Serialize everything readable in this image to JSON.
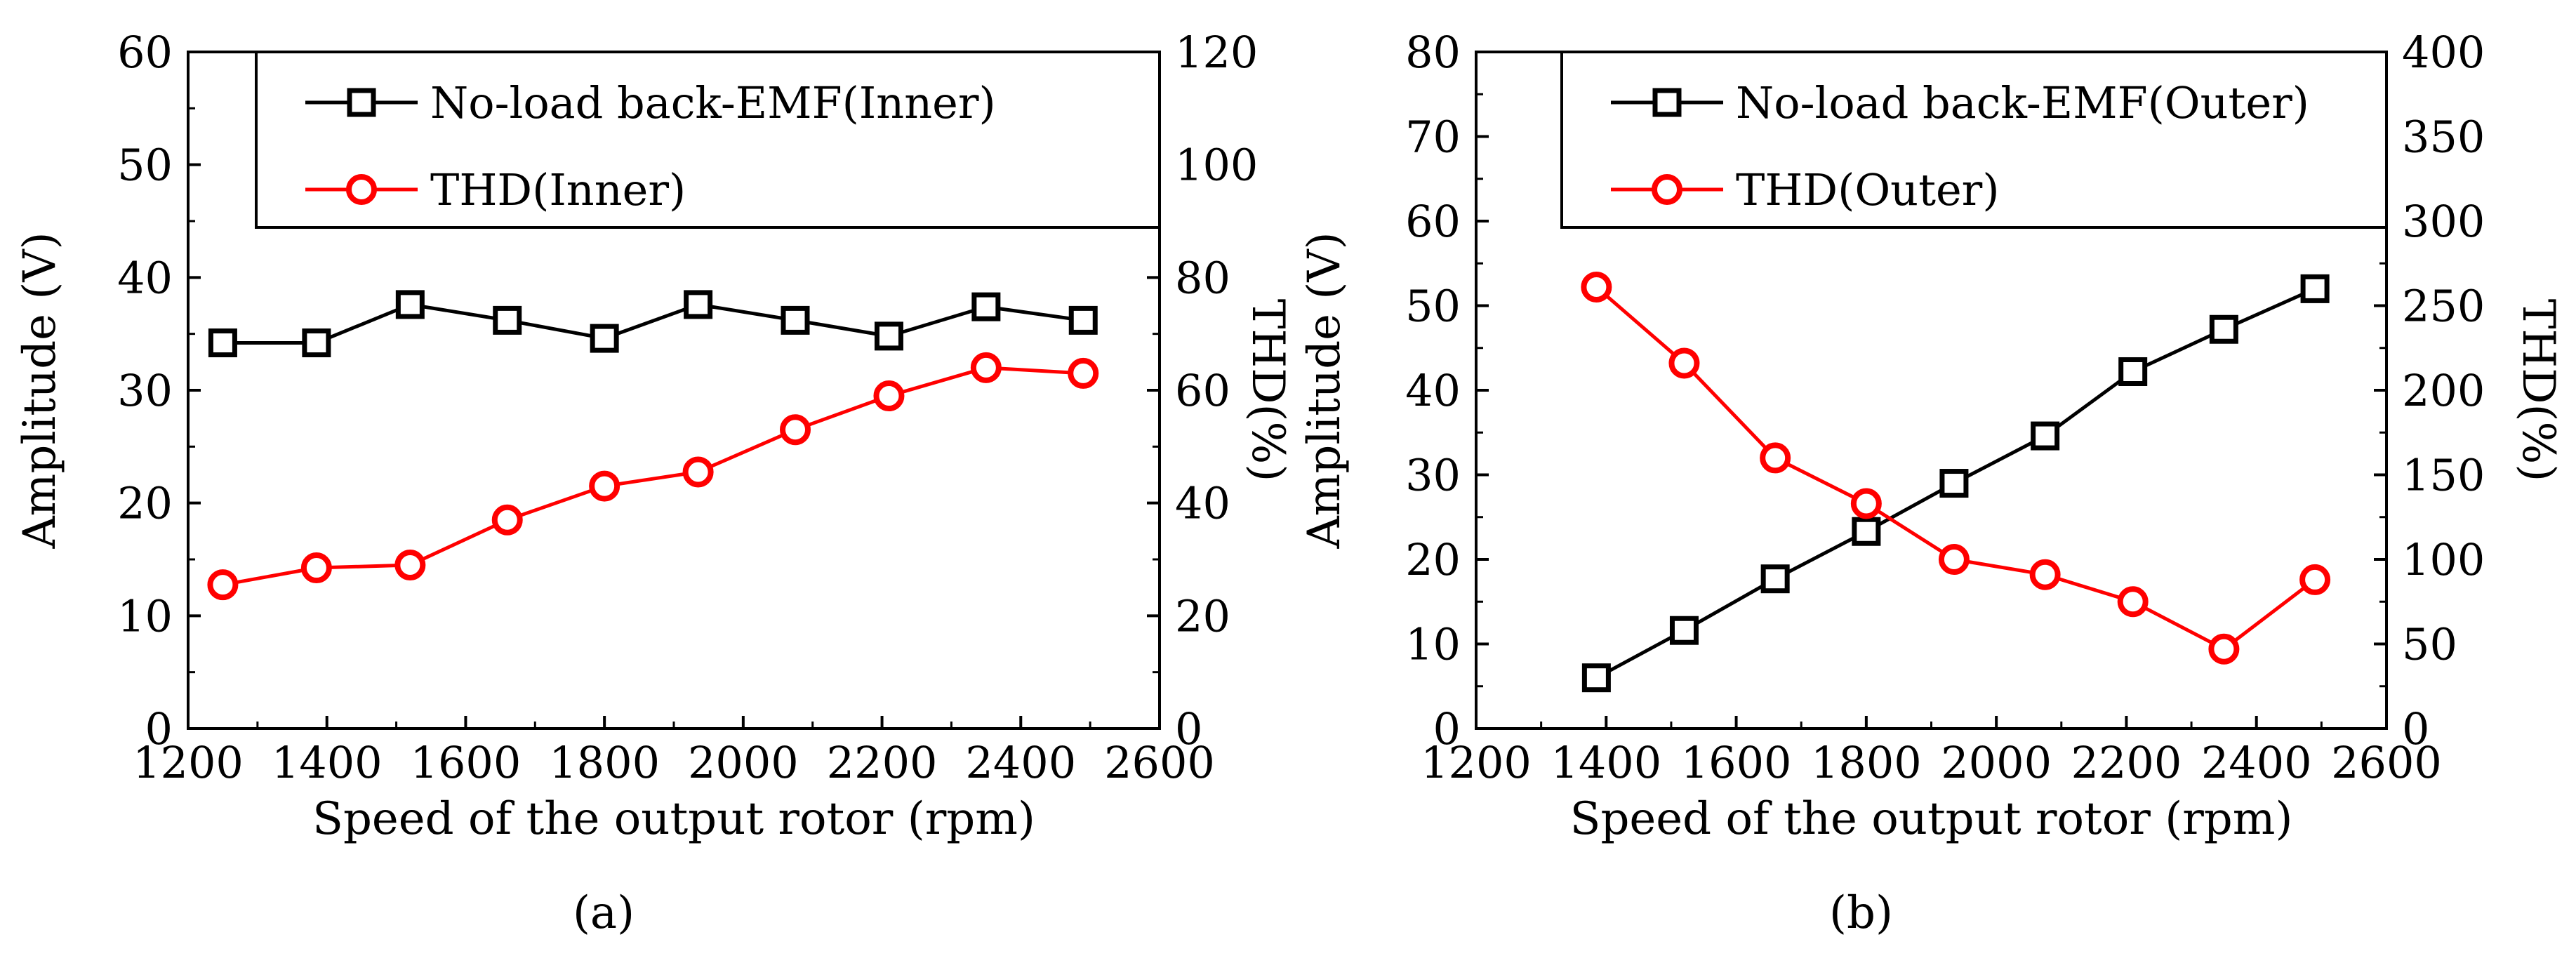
{
  "chart_data": [
    {
      "type": "line",
      "panel_label": "(a)",
      "xlabel": "Speed of the output rotor (rpm)",
      "ylabel": "Amplitude (V)",
      "y2label": "THD(%)",
      "xlim": [
        1200,
        2600
      ],
      "ylim": [
        0,
        60
      ],
      "y2lim": [
        0,
        120
      ],
      "xticks": [
        "1200",
        "1400",
        "1600",
        "1800",
        "2000",
        "2200",
        "2400",
        "2600"
      ],
      "yticks": [
        "0",
        "10",
        "20",
        "30",
        "40",
        "50",
        "60"
      ],
      "y2ticks": [
        "0",
        "20",
        "40",
        "60",
        "80",
        "100",
        "120"
      ],
      "legend_position": "top-right",
      "series": [
        {
          "name": "No-load back-EMF(Inner)",
          "axis": "left",
          "color": "#000000",
          "marker": "square",
          "x": [
            1250,
            1385,
            1520,
            1660,
            1800,
            1935,
            2075,
            2210,
            2350,
            2490
          ],
          "values": [
            34.2,
            34.2,
            37.6,
            36.2,
            34.6,
            37.6,
            36.2,
            34.8,
            37.4,
            36.2
          ]
        },
        {
          "name": "THD(Inner)",
          "axis": "right",
          "color": "#ff0000",
          "marker": "circle",
          "x": [
            1250,
            1385,
            1520,
            1660,
            1800,
            1935,
            2075,
            2210,
            2350,
            2490
          ],
          "values": [
            25.5,
            28.5,
            29,
            37,
            43,
            45.5,
            53,
            59,
            64,
            63
          ]
        }
      ]
    },
    {
      "type": "line",
      "panel_label": "(b)",
      "xlabel": "Speed of the output rotor (rpm)",
      "ylabel": "Amplitude (V)",
      "y2label": "THD(%)",
      "xlim": [
        1200,
        2600
      ],
      "ylim": [
        0,
        80
      ],
      "y2lim": [
        0,
        400
      ],
      "xticks": [
        "1200",
        "1400",
        "1600",
        "1800",
        "2000",
        "2200",
        "2400",
        "2600"
      ],
      "yticks": [
        "0",
        "10",
        "20",
        "30",
        "40",
        "50",
        "60",
        "70",
        "80"
      ],
      "y2ticks": [
        "0",
        "50",
        "100",
        "150",
        "200",
        "250",
        "300",
        "350",
        "400"
      ],
      "legend_position": "top-right",
      "series": [
        {
          "name": "No-load back-EMF(Outer)",
          "axis": "left",
          "color": "#000000",
          "marker": "square",
          "x": [
            1385,
            1520,
            1660,
            1800,
            1935,
            2075,
            2210,
            2350,
            2490
          ],
          "values": [
            6,
            11.6,
            17.7,
            23.3,
            29,
            34.6,
            42.2,
            47.2,
            52
          ]
        },
        {
          "name": "THD(Outer)",
          "axis": "right",
          "color": "#ff0000",
          "marker": "circle",
          "x": [
            1385,
            1520,
            1660,
            1800,
            1935,
            2075,
            2210,
            2350,
            2490
          ],
          "values": [
            261,
            216,
            160,
            133,
            100,
            91,
            75,
            47,
            88
          ]
        }
      ]
    }
  ]
}
